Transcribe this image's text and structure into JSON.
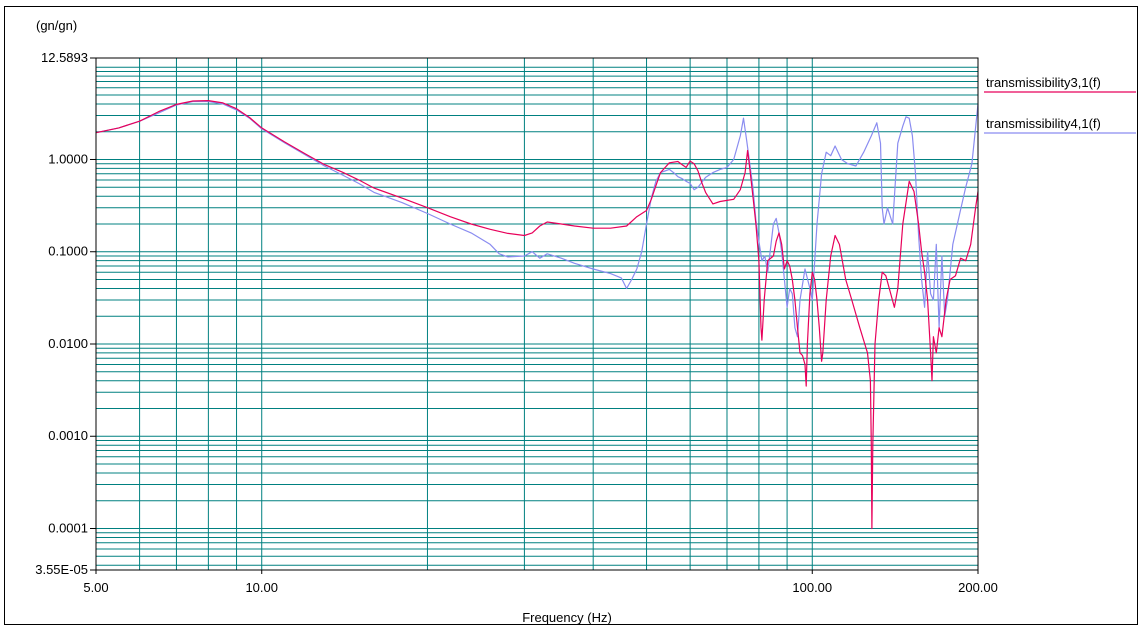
{
  "chart_data": {
    "type": "line",
    "title": "",
    "xlabel": "Frequency (Hz)",
    "ylabel": "(gn/gn)",
    "x_scale": "log",
    "y_scale": "log",
    "xlim": [
      5,
      200
    ],
    "ylim": [
      3.55e-05,
      12.5893
    ],
    "grid": true,
    "legend_position": "right",
    "x_tick_labels": [
      {
        "value": 5,
        "label": "5.00"
      },
      {
        "value": 10,
        "label": "10.00"
      },
      {
        "value": 100,
        "label": "100.00"
      },
      {
        "value": 200,
        "label": "200.00"
      }
    ],
    "y_tick_labels": [
      {
        "value": 12.5893,
        "label": "12.5893"
      },
      {
        "value": 1,
        "label": "1.0000"
      },
      {
        "value": 0.1,
        "label": "0.1000"
      },
      {
        "value": 0.01,
        "label": "0.0100"
      },
      {
        "value": 0.001,
        "label": "0.0010"
      },
      {
        "value": 0.0001,
        "label": "0.0001"
      },
      {
        "value": 3.55e-05,
        "label": "3.55E-05"
      }
    ],
    "series": [
      {
        "name": "transmissibility3,1(f)",
        "color": "#e8005a",
        "points": [
          [
            5,
            1.95
          ],
          [
            5.5,
            2.2
          ],
          [
            6,
            2.6
          ],
          [
            6.5,
            3.3
          ],
          [
            7,
            3.95
          ],
          [
            7.5,
            4.3
          ],
          [
            8,
            4.35
          ],
          [
            8.5,
            4.1
          ],
          [
            9,
            3.55
          ],
          [
            9.5,
            2.85
          ],
          [
            10,
            2.2
          ],
          [
            11,
            1.55
          ],
          [
            12,
            1.15
          ],
          [
            13,
            0.88
          ],
          [
            14,
            0.73
          ],
          [
            15,
            0.6
          ],
          [
            16,
            0.49
          ],
          [
            18,
            0.38
          ],
          [
            20,
            0.3
          ],
          [
            22,
            0.24
          ],
          [
            24,
            0.2
          ],
          [
            26,
            0.175
          ],
          [
            28,
            0.158
          ],
          [
            30,
            0.15
          ],
          [
            31,
            0.16
          ],
          [
            32,
            0.19
          ],
          [
            33,
            0.21
          ],
          [
            35,
            0.2
          ],
          [
            37,
            0.19
          ],
          [
            40,
            0.18
          ],
          [
            43,
            0.18
          ],
          [
            46,
            0.19
          ],
          [
            48,
            0.24
          ],
          [
            50,
            0.28
          ],
          [
            51,
            0.37
          ],
          [
            52,
            0.52
          ],
          [
            53,
            0.72
          ],
          [
            55,
            0.92
          ],
          [
            57,
            0.95
          ],
          [
            58,
            0.88
          ],
          [
            59,
            0.82
          ],
          [
            60,
            0.96
          ],
          [
            61,
            0.9
          ],
          [
            62,
            0.75
          ],
          [
            63,
            0.56
          ],
          [
            64,
            0.44
          ],
          [
            66,
            0.33
          ],
          [
            68,
            0.35
          ],
          [
            70,
            0.36
          ],
          [
            72,
            0.37
          ],
          [
            74,
            0.47
          ],
          [
            75.5,
            0.72
          ],
          [
            76.3,
            1.25
          ],
          [
            77,
            0.8
          ],
          [
            78,
            0.4
          ],
          [
            79,
            0.2
          ],
          [
            80,
            0.08
          ],
          [
            80.7,
            0.015
          ],
          [
            81,
            0.011
          ],
          [
            81.8,
            0.03
          ],
          [
            83,
            0.08
          ],
          [
            85,
            0.09
          ],
          [
            86,
            0.13
          ],
          [
            87,
            0.16
          ],
          [
            88,
            0.12
          ],
          [
            89,
            0.065
          ],
          [
            90,
            0.08
          ],
          [
            91,
            0.07
          ],
          [
            92,
            0.05
          ],
          [
            93,
            0.03
          ],
          [
            94,
            0.015
          ],
          [
            95,
            0.008
          ],
          [
            96,
            0.0075
          ],
          [
            97,
            0.006
          ],
          [
            97.5,
            0.0035
          ],
          [
            98,
            0.01
          ],
          [
            99,
            0.035
          ],
          [
            100,
            0.06
          ],
          [
            101,
            0.05
          ],
          [
            102,
            0.03
          ],
          [
            103,
            0.015
          ],
          [
            104,
            0.0065
          ],
          [
            104.5,
            0.008
          ],
          [
            106,
            0.03
          ],
          [
            108,
            0.09
          ],
          [
            110,
            0.15
          ],
          [
            112,
            0.12
          ],
          [
            115,
            0.05
          ],
          [
            118,
            0.03
          ],
          [
            122,
            0.015
          ],
          [
            126,
            0.008
          ],
          [
            127.5,
            0.004
          ],
          [
            128,
            0.0008
          ],
          [
            128.3,
            0.0001
          ],
          [
            128.8,
            0.0008
          ],
          [
            130,
            0.01
          ],
          [
            132,
            0.03
          ],
          [
            134,
            0.06
          ],
          [
            136,
            0.055
          ],
          [
            138,
            0.04
          ],
          [
            141,
            0.025
          ],
          [
            143,
            0.04
          ],
          [
            146,
            0.2
          ],
          [
            150,
            0.58
          ],
          [
            153,
            0.45
          ],
          [
            156,
            0.2
          ],
          [
            158,
            0.1
          ],
          [
            160,
            0.06
          ],
          [
            162,
            0.03
          ],
          [
            164,
            0.008
          ],
          [
            165,
            0.004
          ],
          [
            166,
            0.012
          ],
          [
            168,
            0.008
          ],
          [
            170,
            0.015
          ],
          [
            172,
            0.012
          ],
          [
            175,
            0.03
          ],
          [
            178,
            0.05
          ],
          [
            182,
            0.055
          ],
          [
            186,
            0.085
          ],
          [
            190,
            0.08
          ],
          [
            194,
            0.12
          ],
          [
            198,
            0.3
          ],
          [
            200,
            0.45
          ]
        ]
      },
      {
        "name": "transmissibility4,1(f)",
        "color": "#8a8cf0",
        "points": [
          [
            5,
            1.95
          ],
          [
            5.5,
            2.2
          ],
          [
            6,
            2.6
          ],
          [
            6.5,
            3.2
          ],
          [
            7,
            3.9
          ],
          [
            7.5,
            4.25
          ],
          [
            8,
            4.25
          ],
          [
            8.5,
            4.0
          ],
          [
            9,
            3.45
          ],
          [
            9.5,
            2.8
          ],
          [
            10,
            2.15
          ],
          [
            11,
            1.52
          ],
          [
            12,
            1.12
          ],
          [
            13,
            0.85
          ],
          [
            14,
            0.68
          ],
          [
            15,
            0.55
          ],
          [
            16,
            0.44
          ],
          [
            18,
            0.34
          ],
          [
            20,
            0.26
          ],
          [
            22,
            0.2
          ],
          [
            24,
            0.16
          ],
          [
            26,
            0.12
          ],
          [
            27,
            0.095
          ],
          [
            28,
            0.088
          ],
          [
            30,
            0.09
          ],
          [
            31,
            0.1
          ],
          [
            32,
            0.085
          ],
          [
            33,
            0.095
          ],
          [
            35,
            0.085
          ],
          [
            37,
            0.075
          ],
          [
            40,
            0.065
          ],
          [
            43,
            0.058
          ],
          [
            45,
            0.052
          ],
          [
            46,
            0.04
          ],
          [
            47,
            0.05
          ],
          [
            48,
            0.065
          ],
          [
            49,
            0.1
          ],
          [
            50,
            0.2
          ],
          [
            51,
            0.38
          ],
          [
            52,
            0.58
          ],
          [
            53,
            0.72
          ],
          [
            54,
            0.75
          ],
          [
            55,
            0.78
          ],
          [
            56,
            0.72
          ],
          [
            57,
            0.65
          ],
          [
            58,
            0.62
          ],
          [
            59,
            0.58
          ],
          [
            60,
            0.55
          ],
          [
            61,
            0.47
          ],
          [
            62,
            0.5
          ],
          [
            64,
            0.64
          ],
          [
            66,
            0.72
          ],
          [
            68,
            0.78
          ],
          [
            70,
            0.82
          ],
          [
            72,
            1.0
          ],
          [
            74,
            1.8
          ],
          [
            75,
            2.8
          ],
          [
            76,
            1.6
          ],
          [
            77,
            0.9
          ],
          [
            78,
            0.5
          ],
          [
            79,
            0.22
          ],
          [
            80,
            0.13
          ],
          [
            81,
            0.08
          ],
          [
            82,
            0.09
          ],
          [
            83,
            0.06
          ],
          [
            84,
            0.11
          ],
          [
            85,
            0.2
          ],
          [
            86,
            0.23
          ],
          [
            87,
            0.16
          ],
          [
            88,
            0.1
          ],
          [
            89,
            0.05
          ],
          [
            90,
            0.025
          ],
          [
            91,
            0.04
          ],
          [
            92,
            0.035
          ],
          [
            93,
            0.015
          ],
          [
            94,
            0.012
          ],
          [
            95,
            0.03
          ],
          [
            97,
            0.065
          ],
          [
            99,
            0.04
          ],
          [
            100,
            0.03
          ],
          [
            102,
            0.2
          ],
          [
            104,
            0.7
          ],
          [
            106,
            1.2
          ],
          [
            108,
            1.1
          ],
          [
            110,
            1.4
          ],
          [
            113,
            1.0
          ],
          [
            116,
            0.9
          ],
          [
            120,
            0.85
          ],
          [
            124,
            1.2
          ],
          [
            128,
            1.8
          ],
          [
            131,
            2.5
          ],
          [
            133,
            1.5
          ],
          [
            134,
            0.3
          ],
          [
            135,
            0.2
          ],
          [
            137,
            0.3
          ],
          [
            140,
            0.2
          ],
          [
            143,
            1.5
          ],
          [
            146,
            2.3
          ],
          [
            148,
            2.9
          ],
          [
            150,
            2.8
          ],
          [
            152,
            1.8
          ],
          [
            154,
            0.7
          ],
          [
            156,
            0.15
          ],
          [
            158,
            0.05
          ],
          [
            160,
            0.025
          ],
          [
            162,
            0.1
          ],
          [
            164,
            0.035
          ],
          [
            166,
            0.03
          ],
          [
            168,
            0.12
          ],
          [
            170,
            0.015
          ],
          [
            172,
            0.09
          ],
          [
            174,
            0.02
          ],
          [
            176,
            0.03
          ],
          [
            178,
            0.06
          ],
          [
            180,
            0.12
          ],
          [
            185,
            0.25
          ],
          [
            190,
            0.5
          ],
          [
            195,
            0.9
          ],
          [
            200,
            4.0
          ]
        ]
      }
    ]
  }
}
